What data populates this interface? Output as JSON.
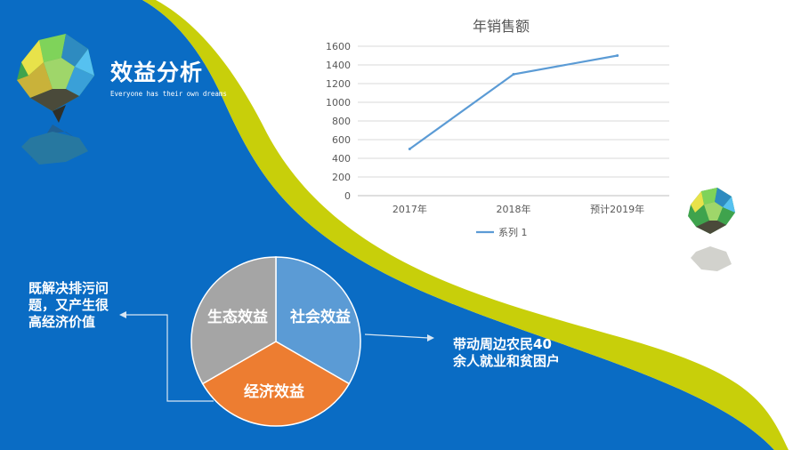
{
  "page": {
    "title": "效益分析",
    "subtitle": "Everyone has their own dreams"
  },
  "notes": {
    "left": "既解决排污问题，又产生很高经济价值",
    "right": "带动周边农民40余人就业和贫困户"
  },
  "pie": {
    "segments": [
      {
        "label": "社会效益",
        "color": "#5b9bd5"
      },
      {
        "label": "经济效益",
        "color": "#ed7d31"
      },
      {
        "label": "生态效益",
        "color": "#a5a5a5"
      }
    ]
  },
  "colors": {
    "background_blue": "#0a6cc4",
    "accent_yellow": "#c8cf0a",
    "line": "#5b9bd5"
  },
  "icons": [
    "low-poly-island-icon",
    "low-poly-island-reflection-icon"
  ],
  "chart_data": {
    "type": "line",
    "title": "年销售额",
    "categories": [
      "2017年",
      "2018年",
      "预计2019年"
    ],
    "series": [
      {
        "name": "系列 1",
        "values": [
          500,
          1300,
          1500
        ]
      }
    ],
    "ylim": [
      0,
      1600
    ],
    "yticks": [
      0,
      200,
      400,
      600,
      800,
      1000,
      1200,
      1400,
      1600
    ],
    "grid": true,
    "legend": "bottom"
  }
}
